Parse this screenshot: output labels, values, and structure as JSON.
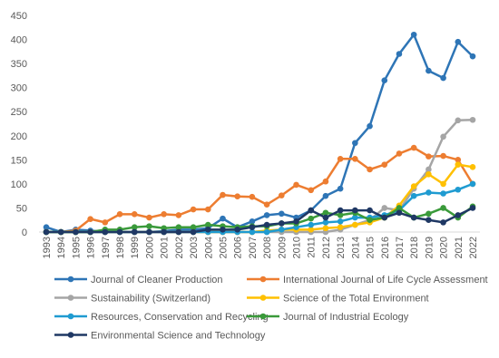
{
  "chart_data": {
    "type": "line",
    "x": [
      "1993",
      "1994",
      "1995",
      "1996",
      "1997",
      "1998",
      "1999",
      "2000",
      "2001",
      "2002",
      "2003",
      "2004",
      "2005",
      "2006",
      "2007",
      "2008",
      "2009",
      "2010",
      "2011",
      "2012",
      "2013",
      "2014",
      "2015",
      "2016",
      "2017",
      "2018",
      "2019",
      "2020",
      "2021",
      "2022"
    ],
    "ylim": [
      0,
      450
    ],
    "yticks": [
      0,
      50,
      100,
      150,
      200,
      250,
      300,
      350,
      400,
      450
    ],
    "grid": false,
    "series": [
      {
        "name": "Journal of Cleaner Production",
        "color": "#2e75b6",
        "values": [
          10,
          0,
          5,
          3,
          0,
          0,
          0,
          0,
          2,
          5,
          5,
          8,
          28,
          10,
          22,
          35,
          38,
          30,
          45,
          75,
          90,
          185,
          220,
          315,
          370,
          410,
          335,
          320,
          395,
          365
        ]
      },
      {
        "name": "International Journal of Life Cycle Assessment",
        "color": "#ed7d31",
        "values": [
          0,
          0,
          3,
          27,
          20,
          37,
          37,
          30,
          37,
          35,
          47,
          47,
          77,
          74,
          73,
          57,
          76,
          98,
          87,
          105,
          152,
          152,
          130,
          140,
          163,
          175,
          157,
          158,
          150,
          100
        ]
      },
      {
        "name": "Sustainability (Switzerland)",
        "color": "#a5a5a5",
        "values": [
          0,
          0,
          0,
          0,
          0,
          0,
          0,
          0,
          0,
          0,
          0,
          0,
          0,
          0,
          0,
          0,
          0,
          0,
          0,
          0,
          5,
          15,
          25,
          50,
          45,
          90,
          130,
          198,
          232,
          233
        ]
      },
      {
        "name": "Science of the Total Environment",
        "color": "#ffc000",
        "values": [
          0,
          0,
          0,
          0,
          0,
          0,
          0,
          0,
          0,
          0,
          0,
          0,
          0,
          0,
          0,
          3,
          5,
          5,
          5,
          8,
          10,
          15,
          20,
          30,
          55,
          95,
          120,
          100,
          140,
          135
        ]
      },
      {
        "name": "Resources, Conservation and Recycling",
        "color": "#1f9bd1",
        "values": [
          0,
          0,
          0,
          0,
          0,
          0,
          0,
          0,
          0,
          0,
          0,
          0,
          0,
          0,
          0,
          0,
          5,
          10,
          15,
          20,
          22,
          30,
          30,
          35,
          45,
          75,
          82,
          80,
          88,
          100
        ]
      },
      {
        "name": "Journal of Industrial Ecology",
        "color": "#3a9a3a",
        "values": [
          0,
          0,
          0,
          0,
          5,
          5,
          10,
          12,
          8,
          10,
          10,
          15,
          12,
          10,
          12,
          12,
          18,
          18,
          28,
          40,
          35,
          40,
          25,
          30,
          50,
          30,
          38,
          50,
          30,
          53
        ]
      },
      {
        "name": "Environmental Science and Technology",
        "color": "#1f3864",
        "values": [
          0,
          0,
          0,
          0,
          0,
          0,
          0,
          0,
          0,
          0,
          0,
          5,
          5,
          5,
          10,
          15,
          18,
          22,
          45,
          30,
          45,
          45,
          45,
          30,
          40,
          30,
          25,
          20,
          35,
          50
        ]
      }
    ]
  }
}
